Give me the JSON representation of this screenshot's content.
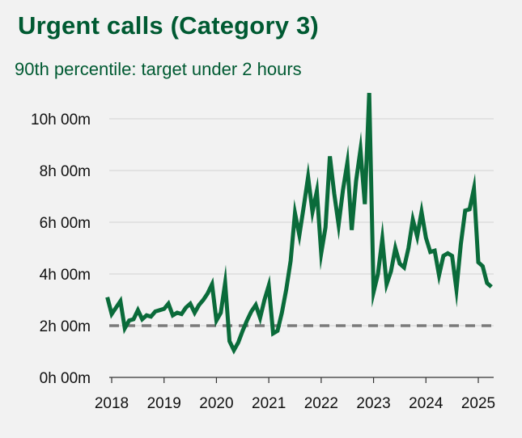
{
  "header": {
    "title": "Urgent calls (Category 3)",
    "subtitle": "90th percentile: target under 2 hours"
  },
  "colors": {
    "line": "#0a6b3a",
    "target": "#7a7a7a",
    "grid": "#d3d3d3",
    "axis": "#333333",
    "title": "#005A32"
  },
  "chart_data": {
    "type": "line",
    "title": "Urgent calls (Category 3)",
    "subtitle": "90th percentile: target under 2 hours",
    "xlabel": "",
    "ylabel": "",
    "ylim": [
      0,
      10
    ],
    "yticks": [
      0,
      2,
      4,
      6,
      8,
      10
    ],
    "ytick_labels": [
      "0h 00m",
      "2h 00m",
      "4h 00m",
      "6h 00m",
      "8h 00m",
      "10h 00m"
    ],
    "xticks": [
      2018,
      2019,
      2020,
      2021,
      2022,
      2023,
      2024,
      2025
    ],
    "xtick_labels": [
      "2018",
      "2019",
      "2020",
      "2021",
      "2022",
      "2023",
      "2024",
      "2025"
    ],
    "grid": true,
    "target_line": 2,
    "series": [
      {
        "x": [
          "2017-12",
          "2018-01",
          "2018-02",
          "2018-03",
          "2018-04",
          "2018-05",
          "2018-06",
          "2018-07",
          "2018-08",
          "2018-09",
          "2018-10",
          "2018-11",
          "2018-12",
          "2019-01",
          "2019-02",
          "2019-03",
          "2019-04",
          "2019-05",
          "2019-06",
          "2019-07",
          "2019-08",
          "2019-09",
          "2019-10",
          "2019-11",
          "2019-12",
          "2020-01",
          "2020-02",
          "2020-03",
          "2020-04",
          "2020-05",
          "2020-06",
          "2020-07",
          "2020-08",
          "2020-09",
          "2020-10",
          "2020-11",
          "2020-12",
          "2021-01",
          "2021-02",
          "2021-03",
          "2021-04",
          "2021-05",
          "2021-06",
          "2021-07",
          "2021-08",
          "2021-09",
          "2021-10",
          "2021-11",
          "2021-12",
          "2022-01",
          "2022-02",
          "2022-03",
          "2022-04",
          "2022-05",
          "2022-06",
          "2022-07",
          "2022-08",
          "2022-09",
          "2022-10",
          "2022-11",
          "2022-12",
          "2023-01",
          "2023-02",
          "2023-03",
          "2023-04",
          "2023-05",
          "2023-06",
          "2023-07",
          "2023-08",
          "2023-09",
          "2023-10",
          "2023-11",
          "2023-12",
          "2024-01",
          "2024-02",
          "2024-03",
          "2024-04",
          "2024-05",
          "2024-06",
          "2024-07",
          "2024-08",
          "2024-09",
          "2024-10",
          "2024-11",
          "2024-12",
          "2025-01",
          "2025-02",
          "2025-03",
          "2025-04"
        ],
        "values": [
          3.1,
          2.45,
          2.7,
          2.95,
          1.9,
          2.2,
          2.25,
          2.6,
          2.25,
          2.4,
          2.35,
          2.55,
          2.6,
          2.65,
          2.85,
          2.4,
          2.5,
          2.45,
          2.7,
          2.85,
          2.5,
          2.8,
          3.0,
          3.25,
          3.6,
          2.2,
          2.5,
          3.65,
          1.4,
          1.05,
          1.35,
          1.8,
          2.2,
          2.55,
          2.8,
          2.3,
          3.0,
          3.55,
          1.7,
          1.8,
          2.5,
          3.4,
          4.5,
          6.35,
          5.5,
          6.6,
          7.75,
          6.4,
          7.2,
          4.8,
          5.8,
          8.55,
          7.1,
          5.9,
          7.25,
          8.3,
          5.7,
          7.6,
          8.8,
          6.7,
          11.0,
          3.3,
          4.0,
          5.35,
          3.6,
          4.1,
          5.0,
          4.4,
          4.25,
          5.0,
          6.1,
          5.45,
          6.4,
          5.4,
          4.85,
          4.9,
          3.95,
          4.7,
          4.8,
          4.7,
          3.4,
          5.15,
          6.45,
          6.5,
          7.3,
          4.45,
          4.3,
          3.65,
          3.5
        ]
      }
    ]
  }
}
